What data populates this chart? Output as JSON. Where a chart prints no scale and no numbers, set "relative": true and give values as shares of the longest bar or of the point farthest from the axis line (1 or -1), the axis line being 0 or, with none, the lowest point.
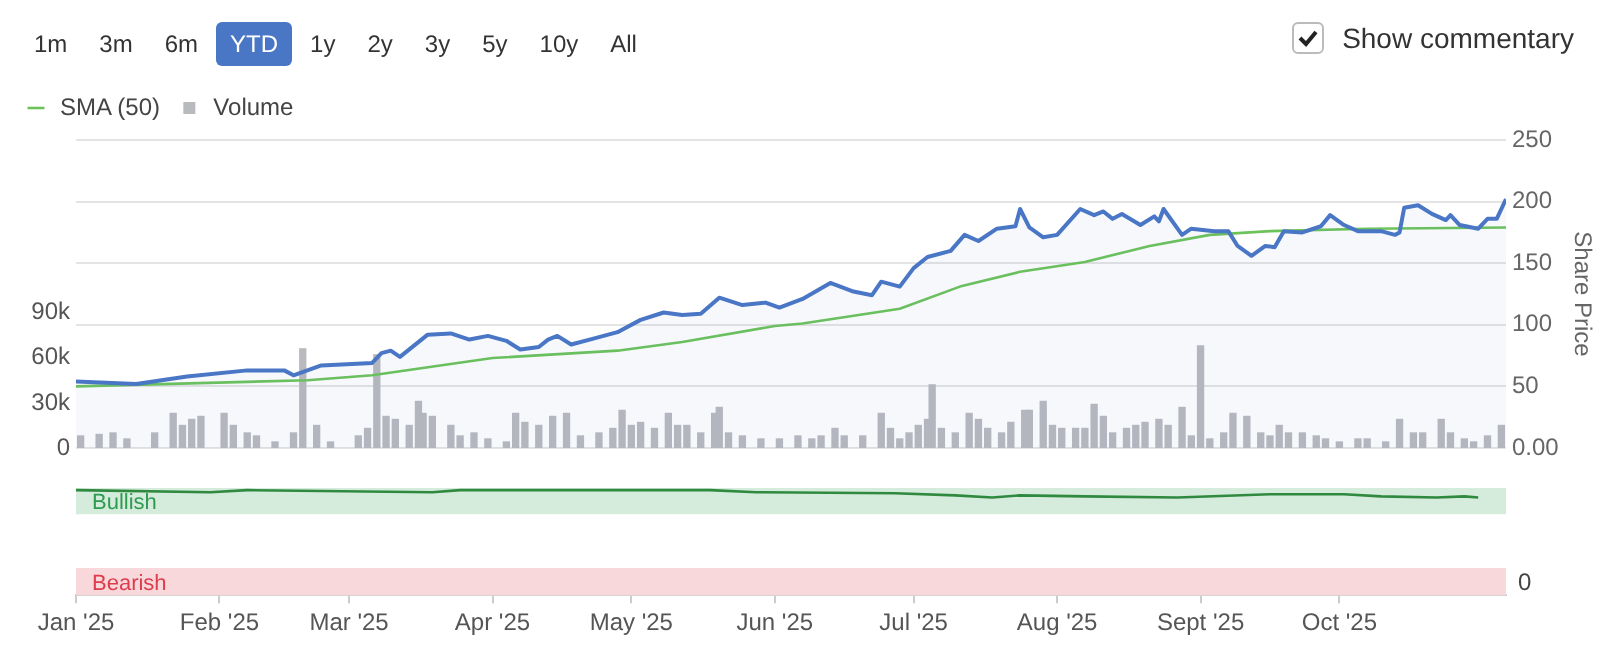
{
  "chart_data": [
    {
      "type": "line",
      "legend": "top left",
      "grid": "y",
      "tick_labels": "y",
      "xlim": [
        "2025-01-01",
        "2025-11-06"
      ],
      "ylim": [
        0,
        205000
      ],
      "yticks": [
        {
          "value": 0,
          "label": "0"
        },
        {
          "value": 30000,
          "label": "30k"
        },
        {
          "value": 60000,
          "label": "60k"
        },
        {
          "value": 90000,
          "label": "90k"
        }
      ],
      "y2lim": [
        0,
        250
      ],
      "y2ticks": [
        {
          "value": 0,
          "label": "0.00"
        },
        50,
        100,
        150,
        200,
        250
      ],
      "y2label": "Share Price",
      "annotations": [
        "1m",
        "3m",
        "6m",
        "YTD",
        "1y",
        "2y",
        "3y",
        "5y",
        "10y",
        "All",
        "Show commentary"
      ],
      "series": [
        {
          "type": "area",
          "axis": "y2",
          "color": "#4a76c6",
          "x": [
            "2025-01-01",
            "2025-01-14",
            "2025-01-25",
            "2025-02-07",
            "2025-02-15",
            "2025-02-17",
            "2025-02-23",
            "2025-03-06",
            "2025-03-08",
            "2025-03-10",
            "2025-03-12",
            "2025-03-18",
            "2025-03-23",
            "2025-03-27",
            "2025-03-31",
            "2025-04-04",
            "2025-04-07",
            "2025-04-11",
            "2025-04-13",
            "2025-04-15",
            "2025-04-18",
            "2025-04-23",
            "2025-04-28",
            "2025-05-03",
            "2025-05-08",
            "2025-05-12",
            "2025-05-16",
            "2025-05-20",
            "2025-05-25",
            "2025-05-30",
            "2025-06-02",
            "2025-06-07",
            "2025-06-13",
            "2025-06-18",
            "2025-06-22",
            "2025-06-24",
            "2025-06-28",
            "2025-07-01",
            "2025-07-04",
            "2025-07-09",
            "2025-07-12",
            "2025-07-15",
            "2025-07-19",
            "2025-07-23",
            "2025-07-24",
            "2025-07-26",
            "2025-07-29",
            "2025-08-01",
            "2025-08-06",
            "2025-08-09",
            "2025-08-11",
            "2025-08-13",
            "2025-08-15",
            "2025-08-19",
            "2025-08-22",
            "2025-08-23",
            "2025-08-24",
            "2025-08-28",
            "2025-08-30",
            "2025-09-04",
            "2025-09-07",
            "2025-09-09",
            "2025-09-12",
            "2025-09-15",
            "2025-09-17",
            "2025-09-19",
            "2025-09-23",
            "2025-09-27",
            "2025-09-29",
            "2025-10-02",
            "2025-10-05",
            "2025-10-10",
            "2025-10-13",
            "2025-10-14",
            "2025-10-15",
            "2025-10-18",
            "2025-10-21",
            "2025-10-24",
            "2025-10-25",
            "2025-10-27",
            "2025-10-31",
            "2025-11-02",
            "2025-11-04",
            "2025-11-06"
          ],
          "values": [
            54,
            52,
            58,
            63,
            63,
            59,
            67,
            69,
            77,
            79,
            74,
            92,
            93,
            88,
            91,
            87,
            80,
            82,
            88,
            91,
            84,
            89,
            94,
            104,
            110,
            108,
            109,
            122,
            116,
            118,
            114,
            121,
            134,
            127,
            124,
            135,
            131,
            146,
            155,
            160,
            173,
            168,
            178,
            180,
            194,
            179,
            171,
            173,
            194,
            189,
            192,
            186,
            190,
            181,
            188,
            184,
            194,
            173,
            178,
            176,
            176,
            164,
            156,
            164,
            163,
            176,
            175,
            180,
            189,
            181,
            176,
            176,
            173,
            175,
            195,
            197,
            190,
            185,
            189,
            181,
            178,
            186,
            186,
            202
          ]
        },
        {
          "type": "line",
          "name": "SMA (50)",
          "axis": "y2",
          "color": "#6cc35a",
          "x": [
            "2025-01-01",
            "2025-02-20",
            "2025-03-06",
            "2025-04-01",
            "2025-04-28",
            "2025-05-12",
            "2025-06-01",
            "2025-06-07",
            "2025-06-28",
            "2025-07-11",
            "2025-07-24",
            "2025-08-07",
            "2025-08-21",
            "2025-09-03",
            "2025-09-16",
            "2025-10-07",
            "2025-11-06"
          ],
          "values": [
            50,
            55,
            59,
            73,
            79,
            86,
            99,
            101,
            113,
            131,
            143,
            151,
            164,
            173,
            176,
            178,
            179
          ]
        },
        {
          "type": "bar",
          "name": "Volume",
          "color": "#b9babe",
          "x": [
            "2025-01-02",
            "2025-01-06",
            "2025-01-09",
            "2025-01-12",
            "2025-01-18",
            "2025-01-22",
            "2025-01-24",
            "2025-01-26",
            "2025-01-28",
            "2025-02-02",
            "2025-02-04",
            "2025-02-07",
            "2025-02-09",
            "2025-02-13",
            "2025-02-17",
            "2025-02-19",
            "2025-02-22",
            "2025-02-25",
            "2025-03-03",
            "2025-03-05",
            "2025-03-07",
            "2025-03-09",
            "2025-03-11",
            "2025-03-14",
            "2025-03-16",
            "2025-03-17",
            "2025-03-19",
            "2025-03-23",
            "2025-03-25",
            "2025-03-28",
            "2025-03-31",
            "2025-04-04",
            "2025-04-06",
            "2025-04-08",
            "2025-04-11",
            "2025-04-14",
            "2025-04-17",
            "2025-04-20",
            "2025-04-24",
            "2025-04-27",
            "2025-04-29",
            "2025-05-01",
            "2025-05-03",
            "2025-05-06",
            "2025-05-09",
            "2025-05-11",
            "2025-05-13",
            "2025-05-16",
            "2025-05-19",
            "2025-05-20",
            "2025-05-22",
            "2025-05-25",
            "2025-05-29",
            "2025-06-02",
            "2025-06-06",
            "2025-06-09",
            "2025-06-11",
            "2025-06-14",
            "2025-06-16",
            "2025-06-20",
            "2025-06-24",
            "2025-06-26",
            "2025-06-28",
            "2025-06-30",
            "2025-07-02",
            "2025-07-04",
            "2025-07-05",
            "2025-07-07",
            "2025-07-10",
            "2025-07-13",
            "2025-07-15",
            "2025-07-17",
            "2025-07-20",
            "2025-07-22",
            "2025-07-25",
            "2025-07-26",
            "2025-07-29",
            "2025-07-31",
            "2025-08-02",
            "2025-08-05",
            "2025-08-07",
            "2025-08-09",
            "2025-08-11",
            "2025-08-13",
            "2025-08-16",
            "2025-08-18",
            "2025-08-20",
            "2025-08-23",
            "2025-08-25",
            "2025-08-28",
            "2025-08-30",
            "2025-09-01",
            "2025-09-03",
            "2025-09-06",
            "2025-09-08",
            "2025-09-11",
            "2025-09-14",
            "2025-09-16",
            "2025-09-18",
            "2025-09-20",
            "2025-09-23",
            "2025-09-26",
            "2025-09-28",
            "2025-10-01",
            "2025-10-05",
            "2025-10-07",
            "2025-10-11",
            "2025-10-14",
            "2025-10-17",
            "2025-10-19",
            "2025-10-23",
            "2025-10-25",
            "2025-10-28",
            "2025-10-30",
            "2025-11-02",
            "2025-11-05"
          ],
          "values": [
            8000,
            9000,
            10000,
            6000,
            10000,
            23000,
            15000,
            19000,
            21000,
            23000,
            15000,
            10000,
            8000,
            4000,
            10000,
            66000,
            15000,
            4000,
            8000,
            13000,
            62000,
            21000,
            19000,
            15000,
            31000,
            23000,
            21000,
            15000,
            8000,
            10000,
            6000,
            4000,
            23000,
            17000,
            15000,
            21000,
            23000,
            8000,
            10000,
            13000,
            25000,
            15000,
            17000,
            13000,
            23000,
            15000,
            15000,
            10000,
            23000,
            27000,
            10000,
            8000,
            6000,
            6000,
            8000,
            6000,
            8000,
            13000,
            8000,
            8000,
            23000,
            13000,
            6000,
            10000,
            15000,
            19000,
            42000,
            13000,
            10000,
            23000,
            19000,
            13000,
            10000,
            17000,
            25000,
            25000,
            31000,
            15000,
            13000,
            13000,
            13000,
            29000,
            21000,
            10000,
            13000,
            15000,
            17000,
            19000,
            15000,
            27000,
            8000,
            68000,
            6000,
            10000,
            23000,
            21000,
            10000,
            8000,
            15000,
            10000,
            10000,
            8000,
            6000,
            4000,
            6000,
            6000,
            4000,
            19000,
            10000,
            10000,
            19000,
            10000,
            6000,
            4000,
            8000,
            15000
          ]
        }
      ]
    },
    {
      "type": "line",
      "xlim": [
        "2025-01-01",
        "2025-11-06"
      ],
      "xticks": [
        {
          "value": "2025-01-01",
          "label": "Jan '25"
        },
        {
          "value": "2025-02-01",
          "label": "Feb '25"
        },
        {
          "value": "2025-03-01",
          "label": "Mar '25"
        },
        {
          "value": "2025-04-01",
          "label": "Apr '25"
        },
        {
          "value": "2025-05-01",
          "label": "May '25"
        },
        {
          "value": "2025-06-01",
          "label": "Jun '25"
        },
        {
          "value": "2025-07-01",
          "label": "Jul '25"
        },
        {
          "value": "2025-08-01",
          "label": "Aug '25"
        },
        {
          "value": "2025-09-01",
          "label": "Sept '25"
        },
        {
          "value": "2025-10-01",
          "label": "Oct '25"
        }
      ],
      "relative": true,
      "annotations": [
        "0"
      ],
      "bands": [
        {
          "axis": "y",
          "from": 0.77,
          "to": 1.02,
          "label": "Bullish",
          "color": "#d5ebdc"
        },
        {
          "axis": "y",
          "from": 0,
          "to": 0.26,
          "label": "Bearish",
          "color": "#f8d8db"
        }
      ],
      "series": [
        {
          "color": "#2f8a3f",
          "x": [
            "2025-01-01",
            "2025-01-30",
            "2025-02-07",
            "2025-03-19",
            "2025-03-25",
            "2025-05-18",
            "2025-05-28",
            "2025-06-27",
            "2025-07-10",
            "2025-07-18",
            "2025-07-24",
            "2025-08-07",
            "2025-08-27",
            "2025-09-16",
            "2025-10-02",
            "2025-10-10",
            "2025-10-22",
            "2025-10-28",
            "2025-10-31"
          ],
          "values": [
            1,
            0.98,
            1,
            0.98,
            1,
            1,
            0.98,
            0.97,
            0.95,
            0.93,
            0.95,
            0.94,
            0.93,
            0.96,
            0.96,
            0.94,
            0.93,
            0.94,
            0.93
          ]
        }
      ]
    }
  ]
}
